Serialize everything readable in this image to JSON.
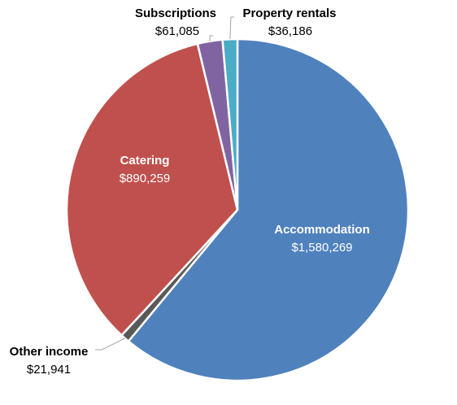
{
  "chart_data": {
    "type": "pie",
    "title": "",
    "start_angle_deg": 0,
    "direction": "clockwise",
    "slices": [
      {
        "name": "Accommodation",
        "value": 1580269,
        "value_label": "$1,580,269",
        "color": "#4f81bd"
      },
      {
        "name": "Other income",
        "value": 21941,
        "value_label": "$21,941",
        "color": "#595959"
      },
      {
        "name": "Catering",
        "value": 890259,
        "value_label": "$890,259",
        "color": "#c0504d"
      },
      {
        "name": "Subscriptions",
        "value": 61085,
        "value_label": "$61,085",
        "color": "#8064a2"
      },
      {
        "name": "Property rentals",
        "value": 36186,
        "value_label": "$36,186",
        "color": "#4bacc6"
      }
    ],
    "legend": "none",
    "data_labels": true
  }
}
